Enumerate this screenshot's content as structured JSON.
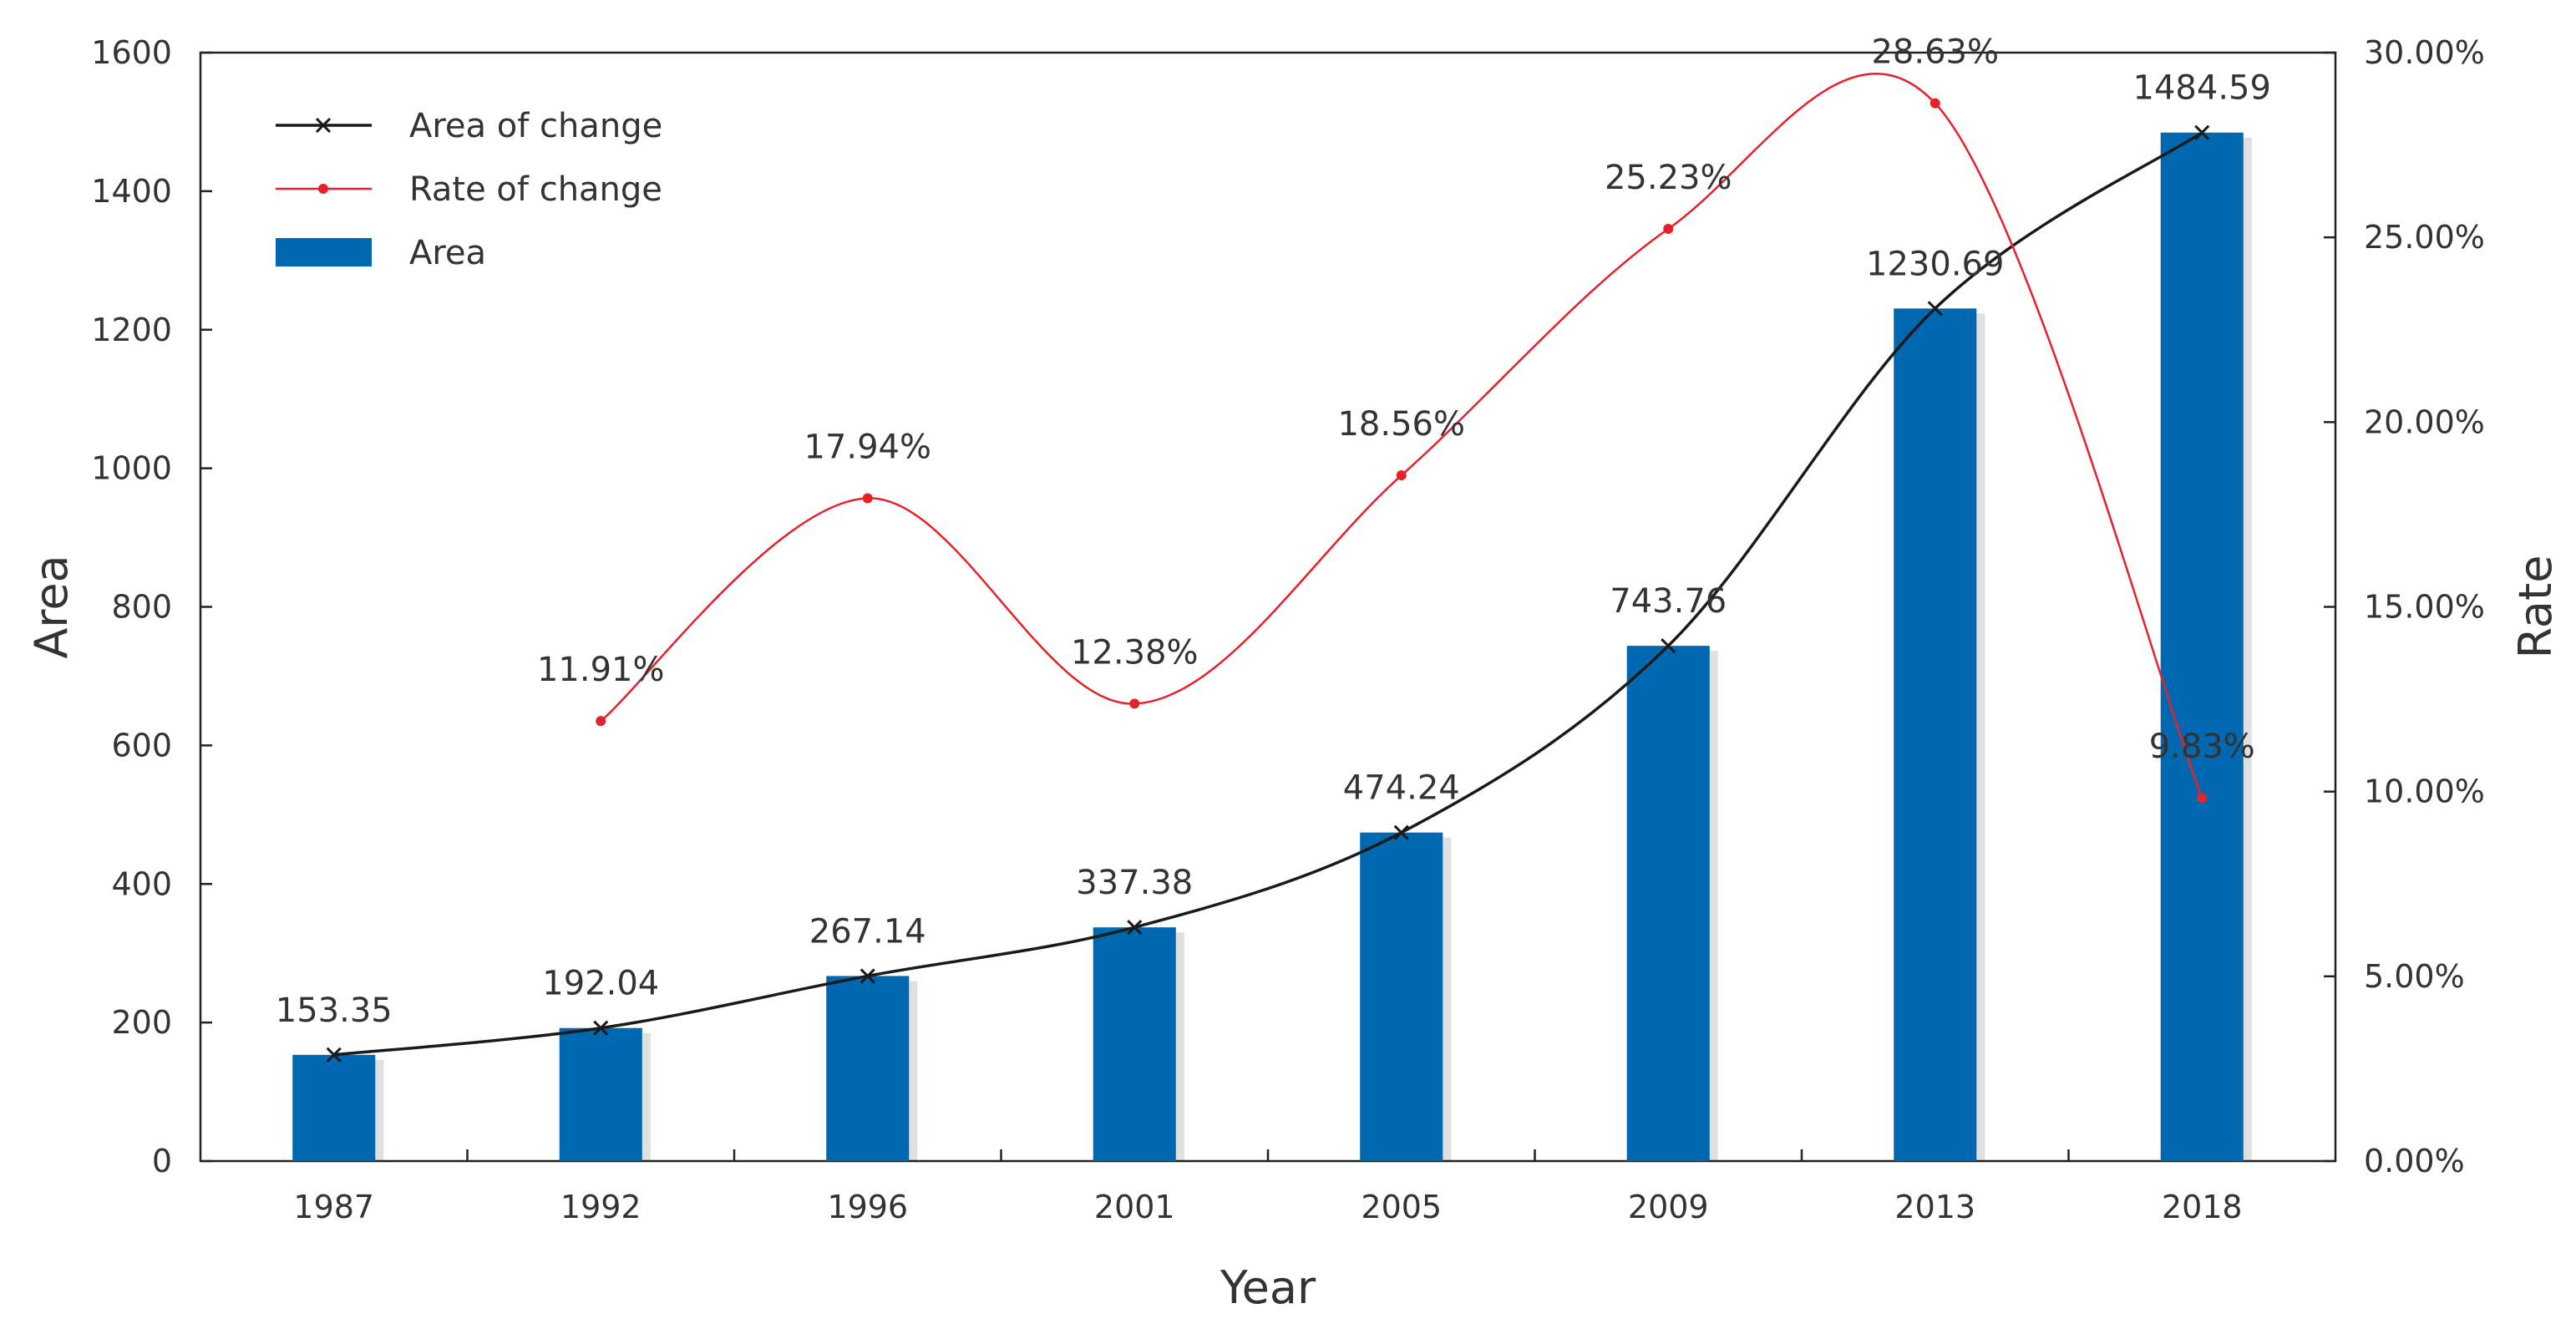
{
  "chart_data": {
    "type": "bar",
    "title": "",
    "xlabel": "Year",
    "ylabel": "Area",
    "y2label": "Rate",
    "categories": [
      "1987",
      "1992",
      "1996",
      "2001",
      "2005",
      "2009",
      "2013",
      "2018"
    ],
    "ylim": [
      0,
      1600
    ],
    "y_ticks": [
      0,
      200,
      400,
      600,
      800,
      1000,
      1200,
      1400,
      1600
    ],
    "y2lim": [
      0,
      0.3
    ],
    "y2_ticks": [
      "0.00%",
      "5.00%",
      "10.00%",
      "15.00%",
      "20.00%",
      "25.00%",
      "30.00%"
    ],
    "grid": false,
    "legend_position": "top-left",
    "series": [
      {
        "name": "Area",
        "kind": "bar",
        "axis": "left",
        "color": "#0068B0",
        "values": [
          153.35,
          192.04,
          267.14,
          337.38,
          474.24,
          743.76,
          1230.69,
          1484.59
        ]
      },
      {
        "name": "Area of change",
        "kind": "line",
        "marker": "x",
        "axis": "left",
        "color": "#1a1a1a",
        "values": [
          153.35,
          192.04,
          267.14,
          337.38,
          474.24,
          743.76,
          1230.69,
          1484.59
        ],
        "labels": [
          "153.35",
          "192.04",
          "267.14",
          "337.38",
          "474.24",
          "743.76",
          "1230.69",
          "1484.59"
        ]
      },
      {
        "name": "Rate of change",
        "kind": "line",
        "marker": "dot",
        "axis": "right",
        "color": "#E8202A",
        "values": [
          null,
          0.1191,
          0.1794,
          0.1238,
          0.1856,
          0.2523,
          0.2863,
          0.0983
        ],
        "labels": [
          null,
          "11.91%",
          "17.94%",
          "12.38%",
          "18.56%",
          "25.23%",
          "28.63%",
          "9.83%"
        ]
      }
    ],
    "legend": [
      {
        "name": "Area of change",
        "symbol": "line-x"
      },
      {
        "name": "Rate of change",
        "symbol": "line-dot"
      },
      {
        "name": "Area",
        "symbol": "bar"
      }
    ]
  }
}
